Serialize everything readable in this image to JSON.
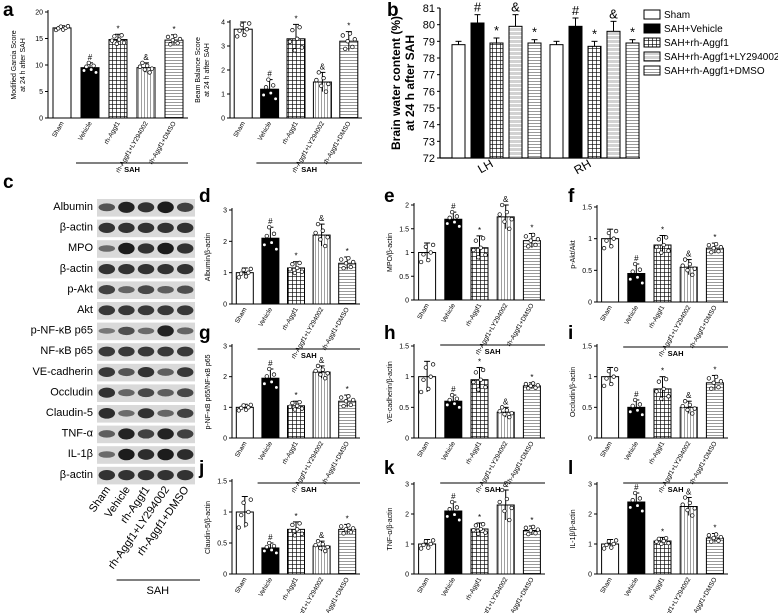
{
  "panel_labels": {
    "a": "a",
    "b": "b",
    "c": "c",
    "d": "d",
    "e": "e",
    "f": "f",
    "g": "g",
    "h": "h",
    "i": "i",
    "j": "j",
    "k": "k",
    "l": "l"
  },
  "colors": {
    "sham": "#ffffff",
    "vehicle": "#000000",
    "rh_aggf1": "#ffffff",
    "rh_aggf1_ly": "#c8c8c8",
    "rh_aggf1_dmso": "#ffffff",
    "bar_stroke": "#000000"
  },
  "western_blot": {
    "rows": [
      "Albumin",
      "β-actin",
      "MPO",
      "β-actin",
      "p-Akt",
      "Akt",
      "p-NF-κB p65",
      "NF-κB p65",
      "VE-cadherin",
      "Occludin",
      "Claudin-5",
      "TNF-α",
      "IL-1β",
      "β-actin"
    ],
    "lanes": [
      "Sham",
      "Vehicle",
      "rh-Aggf1",
      "rh-Aggf1+LY294002",
      "rh-Aggf1+DMSO"
    ],
    "group_label": "SAH"
  },
  "chart_data": [
    {
      "id": "a1",
      "type": "bar",
      "title": "",
      "ylabel": "Modified Garcia Score at 24 h after SAH",
      "xlabel": "SAH",
      "categories": [
        "Sham",
        "Vehicle",
        "rh-Aggf1",
        "rh-Aggf1+LY294002",
        "rh-Aggf1+DMSO"
      ],
      "values": [
        17,
        9.5,
        14.8,
        9.5,
        14.7
      ],
      "errors": [
        0.4,
        0.9,
        1,
        0.9,
        1
      ],
      "annotations": [
        "",
        "#",
        "*",
        "&",
        "*"
      ],
      "ylim": [
        0,
        20
      ],
      "yticks": [
        0,
        5,
        10,
        15,
        20
      ],
      "patterns": [
        "white",
        "black",
        "grid",
        "vstripe",
        "hstripe"
      ]
    },
    {
      "id": "a2",
      "type": "bar",
      "title": "",
      "ylabel": "Beam Balance Score at 24 h after SAH",
      "xlabel": "SAH",
      "categories": [
        "Sham",
        "Vehicle",
        "rh-Aggf1",
        "rh-Aggf1+LY294002",
        "rh-Aggf1+DMSO"
      ],
      "values": [
        3.7,
        1.2,
        3.3,
        1.5,
        3.2
      ],
      "errors": [
        0.3,
        0.4,
        0.6,
        0.4,
        0.4
      ],
      "annotations": [
        "",
        "#",
        "*",
        "&",
        "*"
      ],
      "ylim": [
        0,
        4
      ],
      "yticks": [
        0,
        1,
        2,
        3,
        4
      ],
      "patterns": [
        "white",
        "black",
        "grid",
        "vstripe",
        "hstripe"
      ]
    },
    {
      "id": "b",
      "type": "bar",
      "title": "",
      "ylabel": "Brain water content (%) at 24 h after SAH",
      "categories": [
        "LH",
        "RH"
      ],
      "ylim": [
        72,
        81
      ],
      "yticks": [
        72,
        73,
        74,
        75,
        76,
        77,
        78,
        79,
        80,
        81
      ],
      "series": [
        {
          "name": "Sham",
          "values": [
            78.8,
            78.8
          ],
          "errors": [
            0.2,
            0.2
          ],
          "annotations": [
            "",
            ""
          ]
        },
        {
          "name": "SAH+Vehicle",
          "values": [
            80.1,
            79.9
          ],
          "errors": [
            0.5,
            0.5
          ],
          "annotations": [
            "#",
            "#"
          ]
        },
        {
          "name": "SAH+rh-Aggf1",
          "values": [
            78.9,
            78.7
          ],
          "errors": [
            0.3,
            0.3
          ],
          "annotations": [
            "*",
            "*"
          ]
        },
        {
          "name": "SAH+rh-Aggf1+LY294002",
          "values": [
            79.9,
            79.6
          ],
          "errors": [
            0.7,
            0.6
          ],
          "annotations": [
            "&",
            "&"
          ]
        },
        {
          "name": "SAH+rh-Aggf1+DMSO",
          "values": [
            78.9,
            78.9
          ],
          "errors": [
            0.2,
            0.2
          ],
          "annotations": [
            "*",
            "*"
          ]
        }
      ],
      "legend": "top-right"
    },
    {
      "id": "d",
      "type": "bar",
      "ylabel": "Albumin/β-actin",
      "xlabel": "SAH",
      "categories": [
        "Sham",
        "Vehicle",
        "rh-Aggf1",
        "rh-Aggf1+LY294002",
        "rh-Aggf1+DMSO"
      ],
      "values": [
        1.0,
        2.1,
        1.15,
        2.2,
        1.3
      ],
      "errors": [
        0.15,
        0.35,
        0.2,
        0.35,
        0.2
      ],
      "annotations": [
        "",
        "#",
        "*",
        "&",
        "*"
      ],
      "ylim": [
        0,
        3
      ],
      "yticks": [
        0,
        1,
        2,
        3
      ]
    },
    {
      "id": "e",
      "type": "bar",
      "ylabel": "MPO/β-actin",
      "xlabel": "SAH",
      "categories": [
        "Sham",
        "Vehicle",
        "rh-Aggf1",
        "rh-Aggf1+LY294002",
        "rh-Aggf1+DMSO"
      ],
      "values": [
        1.0,
        1.7,
        1.1,
        1.75,
        1.25
      ],
      "errors": [
        0.2,
        0.15,
        0.25,
        0.25,
        0.15
      ],
      "annotations": [
        "",
        "#",
        "*",
        "&",
        "*"
      ],
      "ylim": [
        0,
        2.0
      ],
      "yticks": [
        0.0,
        0.5,
        1.0,
        1.5,
        2.0
      ]
    },
    {
      "id": "f",
      "type": "bar",
      "ylabel": "p-Akt/Akt",
      "xlabel": "SAH",
      "categories": [
        "Sham",
        "Vehicle",
        "rh-Aggf1",
        "rh-Aggf1+LY294002",
        "rh-Aggf1+DMSO"
      ],
      "values": [
        1.0,
        0.45,
        0.9,
        0.55,
        0.85
      ],
      "errors": [
        0.15,
        0.15,
        0.15,
        0.12,
        0.08
      ],
      "annotations": [
        "",
        "#",
        "*",
        "&",
        "*"
      ],
      "ylim": [
        0,
        1.5
      ],
      "yticks": [
        0.0,
        0.5,
        1.0,
        1.5
      ]
    },
    {
      "id": "g",
      "type": "bar",
      "ylabel": "p-NF-κB p65/NF-κB p65",
      "xlabel": "SAH",
      "categories": [
        "Sham",
        "Vehicle",
        "rh-Aggf1",
        "rh-Aggf1+LY294002",
        "rh-Aggf1+DMSO"
      ],
      "values": [
        1.0,
        1.95,
        1.05,
        2.15,
        1.2
      ],
      "errors": [
        0.1,
        0.3,
        0.15,
        0.2,
        0.2
      ],
      "annotations": [
        "",
        "#",
        "*",
        "&",
        "*"
      ],
      "ylim": [
        0,
        3
      ],
      "yticks": [
        0,
        1,
        2,
        3
      ]
    },
    {
      "id": "h",
      "type": "bar",
      "ylabel": "VE-cadherin/β-actin",
      "xlabel": "SAH",
      "categories": [
        "Sham",
        "Vehicle",
        "rh-Aggf1",
        "rh-Aggf1+LY294002",
        "rh-Aggf1+DMSO"
      ],
      "values": [
        1.0,
        0.6,
        0.95,
        0.42,
        0.85
      ],
      "errors": [
        0.25,
        0.1,
        0.2,
        0.08,
        0.05
      ],
      "annotations": [
        "",
        "#",
        "*",
        "&",
        "*"
      ],
      "ylim": [
        0,
        1.5
      ],
      "yticks": [
        0.0,
        0.5,
        1.0,
        1.5
      ]
    },
    {
      "id": "i",
      "type": "bar",
      "ylabel": "Occludin/β-actin",
      "xlabel": "SAH",
      "categories": [
        "Sham",
        "Vehicle",
        "rh-Aggf1",
        "rh-Aggf1+LY294002",
        "rh-Aggf1+DMSO"
      ],
      "values": [
        1.0,
        0.5,
        0.8,
        0.5,
        0.9
      ],
      "errors": [
        0.15,
        0.12,
        0.2,
        0.1,
        0.12
      ],
      "annotations": [
        "",
        "#",
        "*",
        "&",
        "*"
      ],
      "ylim": [
        0,
        1.5
      ],
      "yticks": [
        0.0,
        0.5,
        1.0,
        1.5
      ]
    },
    {
      "id": "j",
      "type": "bar",
      "ylabel": "Claudin-5/β-actin",
      "xlabel": "SAH",
      "categories": [
        "Sham",
        "Vehicle",
        "rh-Aggf1",
        "rh-Aggf1+LY294002",
        "rh-Aggf1+DMSO"
      ],
      "values": [
        1.0,
        0.42,
        0.72,
        0.45,
        0.72
      ],
      "errors": [
        0.25,
        0.08,
        0.12,
        0.08,
        0.08
      ],
      "annotations": [
        "",
        "#",
        "*",
        "&",
        "*"
      ],
      "ylim": [
        0,
        1.5
      ],
      "yticks": [
        0.0,
        0.5,
        1.0,
        1.5
      ]
    },
    {
      "id": "k",
      "type": "bar",
      "ylabel": "TNF-α/β-actin",
      "xlabel": "SAH",
      "categories": [
        "Sham",
        "Vehicle",
        "rh-Aggf1",
        "rh-Aggf1+LY294002",
        "rh-Aggf1+DMSO"
      ],
      "values": [
        1.0,
        2.1,
        1.5,
        2.3,
        1.45
      ],
      "errors": [
        0.15,
        0.3,
        0.2,
        0.5,
        0.15
      ],
      "annotations": [
        "",
        "#",
        "*",
        "&",
        "*"
      ],
      "ylim": [
        0,
        3
      ],
      "yticks": [
        0,
        1,
        2,
        3
      ]
    },
    {
      "id": "l",
      "type": "bar",
      "ylabel": "IL-1β/β-actin",
      "xlabel": "SAH",
      "categories": [
        "Sham",
        "Vehicle",
        "rh-Aggf1",
        "rh-Aggf1+LY294002",
        "rh-Aggf1+DMSO"
      ],
      "values": [
        1.0,
        2.4,
        1.1,
        2.25,
        1.2
      ],
      "errors": [
        0.15,
        0.3,
        0.12,
        0.3,
        0.15
      ],
      "annotations": [
        "",
        "#",
        "*",
        "&",
        "*"
      ],
      "ylim": [
        0,
        3
      ],
      "yticks": [
        0,
        1,
        2,
        3
      ]
    }
  ]
}
